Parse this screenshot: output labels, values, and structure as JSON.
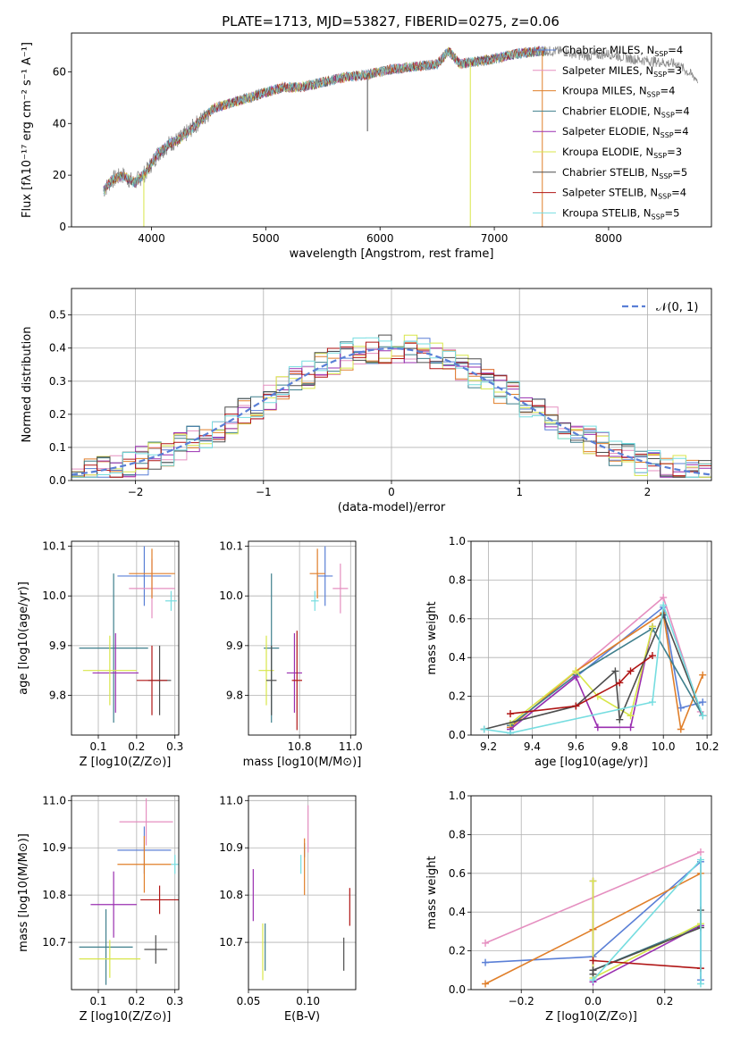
{
  "figure": {
    "title": "PLATE=1713, MJD=53827, FIBERID=0275, z=0.06"
  },
  "models": [
    {
      "name": "Chabrier MILES",
      "nssp": "4",
      "color": "#5a7fd6"
    },
    {
      "name": "Salpeter MILES",
      "nssp": "3",
      "color": "#e58fc0"
    },
    {
      "name": "Kroupa MILES",
      "nssp": "4",
      "color": "#e07f2a"
    },
    {
      "name": "Chabrier ELODIE",
      "nssp": "4",
      "color": "#3f7f8c"
    },
    {
      "name": "Salpeter ELODIE",
      "nssp": "4",
      "color": "#9a2fb0"
    },
    {
      "name": "Kroupa ELODIE",
      "nssp": "3",
      "color": "#d8e64a"
    },
    {
      "name": "Chabrier STELIB",
      "nssp": "5",
      "color": "#4d4d4d"
    },
    {
      "name": "Salpeter STELIB",
      "nssp": "4",
      "color": "#b01515"
    },
    {
      "name": "Kroupa STELIB",
      "nssp": "5",
      "color": "#76dde0"
    }
  ],
  "chart_data": [
    {
      "id": "spectrum",
      "type": "line",
      "title": "PLATE=1713, MJD=53827, FIBERID=0275, z=0.06",
      "xlabel": "wavelength [Angstrom, rest frame]",
      "ylabel": "Flux [f_λ 10^-17 erg cm^-2 s^-1 A^-1]",
      "xlim": [
        3300,
        8900
      ],
      "ylim": [
        0,
        75
      ],
      "xticks": [
        4000,
        5000,
        6000,
        7000,
        8000
      ],
      "yticks": [
        0,
        20,
        40,
        60
      ],
      "legend": "right",
      "data_continuum": {
        "x": [
          3580,
          3650,
          3750,
          3850,
          3950,
          4050,
          4150,
          4250,
          4350,
          4450,
          4550,
          4700,
          4850,
          5000,
          5150,
          5300,
          5500,
          5700,
          5900,
          6100,
          6300,
          6500,
          6600,
          6700,
          6850,
          7000,
          7200,
          7400,
          7600,
          7800,
          8000,
          8200,
          8400,
          8600,
          8780
        ],
        "y": [
          14,
          18,
          20,
          17,
          21,
          28,
          32,
          34,
          38,
          42,
          46,
          48,
          50,
          52,
          54,
          54,
          56,
          58,
          59,
          61,
          62,
          63,
          68,
          63,
          64,
          65,
          67,
          68,
          68,
          66,
          67,
          65,
          64,
          63,
          57
        ]
      },
      "absorption_spikes": [
        {
          "x": 3933,
          "depth_to": 0,
          "series": "Kroupa ELODIE"
        },
        {
          "x": 5890,
          "depth_to": 37,
          "series": "Chabrier STELIB"
        },
        {
          "x": 6790,
          "depth_to": 0,
          "series": "Kroupa ELODIE"
        },
        {
          "x": 7420,
          "depth_to": 0,
          "series": "Kroupa MILES"
        }
      ]
    },
    {
      "id": "residual_histogram",
      "type": "step",
      "xlabel": "(data-model)/error",
      "ylabel": "Normed distribution",
      "xlim": [
        -2.5,
        2.5
      ],
      "ylim": [
        0,
        0.58
      ],
      "xticks": [
        -2,
        -1,
        0,
        1,
        2
      ],
      "xticklabels": [
        "−2",
        "−1",
        "0",
        "1",
        "2"
      ],
      "yticks": [
        0.0,
        0.1,
        0.2,
        0.3,
        0.4,
        0.5
      ],
      "yticklabels": [
        "0.0",
        "0.1",
        "0.2",
        "0.3",
        "0.4",
        "0.5"
      ],
      "grid": true,
      "legend": "top-right",
      "reference": {
        "label": "𝒩(0, 1)",
        "mean": 0,
        "sigma": 1,
        "color": "#5a7fd6"
      },
      "bin_width": 0.1,
      "bin_start": -2.5
    },
    {
      "id": "age_vs_Z",
      "type": "errorbar",
      "xlabel": "Z [log10(Z/Z⊙)]",
      "ylabel": "age [log10(age/yr)]",
      "xlim": [
        0.03,
        0.31
      ],
      "ylim": [
        9.72,
        10.11
      ],
      "xticks": [
        0.1,
        0.2,
        0.3
      ],
      "xticklabels": [
        "0.1",
        "0.2",
        "0.3"
      ],
      "yticks": [
        9.8,
        9.9,
        10.0,
        10.1
      ],
      "yticklabels": [
        "9.8",
        "9.9",
        "10.0",
        "10.1"
      ],
      "grid": true,
      "points": [
        {
          "series": "Chabrier MILES",
          "x": 0.22,
          "xerr": 0.07,
          "y": 10.04,
          "yerr": 0.06
        },
        {
          "series": "Salpeter MILES",
          "x": 0.24,
          "xerr": 0.06,
          "y": 10.015,
          "yerr": 0.06
        },
        {
          "series": "Kroupa MILES",
          "x": 0.24,
          "xerr": 0.06,
          "y": 10.045,
          "yerr": 0.05
        },
        {
          "series": "Chabrier ELODIE",
          "x": 0.14,
          "xerr": 0.09,
          "y": 9.895,
          "yerr": 0.15
        },
        {
          "series": "Salpeter ELODIE",
          "x": 0.145,
          "xerr": 0.06,
          "y": 9.845,
          "yerr": 0.08
        },
        {
          "series": "Kroupa ELODIE",
          "x": 0.13,
          "xerr": 0.07,
          "y": 9.85,
          "yerr": 0.07
        },
        {
          "series": "Chabrier STELIB",
          "x": 0.26,
          "xerr": 0.03,
          "y": 9.83,
          "yerr": 0.07
        },
        {
          "series": "Salpeter STELIB",
          "x": 0.24,
          "xerr": 0.04,
          "y": 9.83,
          "yerr": 0.07
        },
        {
          "series": "Kroupa STELIB",
          "x": 0.29,
          "xerr": 0.015,
          "y": 9.99,
          "yerr": 0.02
        }
      ]
    },
    {
      "id": "age_vs_mass",
      "type": "errorbar",
      "xlabel": "mass [log10(M/M⊙)]",
      "ylabel": "",
      "xlim": [
        10.6,
        11.02
      ],
      "ylim": [
        9.72,
        10.11
      ],
      "xticks": [
        10.8,
        11.0
      ],
      "xticklabels": [
        "10.8",
        "11.0"
      ],
      "yticks": [
        9.8,
        9.9,
        10.0,
        10.1
      ],
      "yticklabels": [
        "9.8",
        "9.9",
        "10.0",
        "10.1"
      ],
      "grid": true,
      "points": [
        {
          "series": "Chabrier MILES",
          "x": 10.9,
          "xerr": 0.03,
          "y": 10.04,
          "yerr": 0.06
        },
        {
          "series": "Salpeter MILES",
          "x": 10.96,
          "xerr": 0.03,
          "y": 10.015,
          "yerr": 0.05
        },
        {
          "series": "Kroupa MILES",
          "x": 10.87,
          "xerr": 0.03,
          "y": 10.045,
          "yerr": 0.05
        },
        {
          "series": "Chabrier ELODIE",
          "x": 10.69,
          "xerr": 0.03,
          "y": 9.895,
          "yerr": 0.15
        },
        {
          "series": "Salpeter ELODIE",
          "x": 10.78,
          "xerr": 0.03,
          "y": 9.845,
          "yerr": 0.08
        },
        {
          "series": "Kroupa ELODIE",
          "x": 10.67,
          "xerr": 0.03,
          "y": 9.85,
          "yerr": 0.07
        },
        {
          "series": "Chabrier STELIB",
          "x": 10.69,
          "xerr": 0.02,
          "y": 9.83,
          "yerr": 0.07
        },
        {
          "series": "Salpeter STELIB",
          "x": 10.79,
          "xerr": 0.02,
          "y": 9.83,
          "yerr": 0.1
        },
        {
          "series": "Kroupa STELIB",
          "x": 10.86,
          "xerr": 0.015,
          "y": 9.99,
          "yerr": 0.02
        }
      ]
    },
    {
      "id": "weight_vs_age",
      "type": "line",
      "xlabel": "age [log10(age/yr)]",
      "ylabel": "mass weight",
      "xlim": [
        9.12,
        10.22
      ],
      "ylim": [
        0,
        1
      ],
      "xticks": [
        9.2,
        9.4,
        9.6,
        9.8,
        10.0,
        10.2
      ],
      "xticklabels": [
        "9.2",
        "9.4",
        "9.6",
        "9.8",
        "10.0",
        "10.2"
      ],
      "yticks": [
        0,
        0.2,
        0.4,
        0.6,
        0.8,
        1.0
      ],
      "yticklabels": [
        "0.0",
        "0.2",
        "0.4",
        "0.6",
        "0.8",
        "1.0"
      ],
      "grid": true,
      "series": [
        {
          "name": "Chabrier MILES",
          "x": [
            9.3,
            10.0,
            10.08,
            10.18
          ],
          "y": [
            0.03,
            0.66,
            0.14,
            0.17
          ]
        },
        {
          "name": "Salpeter MILES",
          "x": [
            9.3,
            10.0,
            10.17
          ],
          "y": [
            0.04,
            0.71,
            0.12
          ]
        },
        {
          "name": "Kroupa MILES",
          "x": [
            9.3,
            9.6,
            10.0,
            10.08,
            10.18
          ],
          "y": [
            0.04,
            0.33,
            0.63,
            0.03,
            0.31
          ]
        },
        {
          "name": "Chabrier ELODIE",
          "x": [
            9.3,
            9.6,
            9.95,
            10.18
          ],
          "y": [
            0.05,
            0.31,
            0.55,
            0.1
          ]
        },
        {
          "name": "Salpeter ELODIE",
          "x": [
            9.3,
            9.6,
            9.7,
            9.85,
            9.95
          ],
          "y": [
            0.03,
            0.3,
            0.04,
            0.04,
            0.56
          ]
        },
        {
          "name": "Kroupa ELODIE",
          "x": [
            9.3,
            9.6,
            9.7,
            9.85,
            9.95
          ],
          "y": [
            0.06,
            0.33,
            0.2,
            0.1,
            0.56
          ]
        },
        {
          "name": "Chabrier STELIB",
          "x": [
            9.18,
            9.6,
            9.78,
            9.8,
            10.0,
            10.18
          ],
          "y": [
            0.03,
            0.15,
            0.33,
            0.08,
            0.62,
            0.1
          ]
        },
        {
          "name": "Salpeter STELIB",
          "x": [
            9.3,
            9.6,
            9.8,
            9.85,
            9.95
          ],
          "y": [
            0.11,
            0.15,
            0.27,
            0.33,
            0.41
          ]
        },
        {
          "name": "Kroupa STELIB",
          "x": [
            9.18,
            9.3,
            9.95,
            10.0,
            10.18
          ],
          "y": [
            0.03,
            0.01,
            0.17,
            0.67,
            0.1
          ]
        }
      ]
    },
    {
      "id": "mass_vs_Z",
      "type": "errorbar",
      "xlabel": "Z [log10(Z/Z⊙)]",
      "ylabel": "mass [log10(M/M⊙)]",
      "xlim": [
        0.03,
        0.31
      ],
      "ylim": [
        10.6,
        11.01
      ],
      "xticks": [
        0.1,
        0.2,
        0.3
      ],
      "xticklabels": [
        "0.1",
        "0.2",
        "0.3"
      ],
      "yticks": [
        10.7,
        10.8,
        10.9,
        11.0
      ],
      "yticklabels": [
        "10.7",
        "10.8",
        "10.9",
        "11.0"
      ],
      "grid": true,
      "points": [
        {
          "series": "Chabrier MILES",
          "x": 0.22,
          "xerr": 0.07,
          "y": 10.895,
          "yerr": 0.05
        },
        {
          "series": "Salpeter MILES",
          "x": 0.225,
          "xerr": 0.07,
          "y": 10.955,
          "yerr": 0.05
        },
        {
          "series": "Kroupa MILES",
          "x": 0.22,
          "xerr": 0.07,
          "y": 10.865,
          "yerr": 0.06
        },
        {
          "series": "Chabrier ELODIE",
          "x": 0.12,
          "xerr": 0.07,
          "y": 10.69,
          "yerr": 0.08
        },
        {
          "series": "Salpeter ELODIE",
          "x": 0.14,
          "xerr": 0.06,
          "y": 10.78,
          "yerr": 0.07
        },
        {
          "series": "Kroupa ELODIE",
          "x": 0.13,
          "xerr": 0.08,
          "y": 10.665,
          "yerr": 0.04
        },
        {
          "series": "Chabrier STELIB",
          "x": 0.25,
          "xerr": 0.03,
          "y": 10.685,
          "yerr": 0.03
        },
        {
          "series": "Salpeter STELIB",
          "x": 0.26,
          "xerr": 0.05,
          "y": 10.79,
          "yerr": 0.03
        },
        {
          "series": "Kroupa STELIB",
          "x": 0.3,
          "xerr": 0.01,
          "y": 10.865,
          "yerr": 0.02
        }
      ]
    },
    {
      "id": "mass_vs_EBV",
      "type": "errorbar",
      "xlabel": "E(B-V)",
      "ylabel": "",
      "xlim": [
        0.05,
        0.14
      ],
      "ylim": [
        10.6,
        11.01
      ],
      "xticks": [
        0.05,
        0.1
      ],
      "xticklabels": [
        "0.05",
        "0.10"
      ],
      "yticks": [
        10.7,
        10.8,
        10.9,
        11.0
      ],
      "yticklabels": [
        "10.7",
        "10.8",
        "10.9",
        "11.0"
      ],
      "grid": true,
      "points": [
        {
          "series": "Chabrier MILES",
          "x": 0.097,
          "xerr": 0.0,
          "y": 10.895,
          "yerr": 0.015
        },
        {
          "series": "Salpeter MILES",
          "x": 0.1,
          "xerr": 0.0,
          "y": 10.94,
          "yerr": 0.05
        },
        {
          "series": "Kroupa MILES",
          "x": 0.097,
          "xerr": 0.0,
          "y": 10.86,
          "yerr": 0.06
        },
        {
          "series": "Chabrier ELODIE",
          "x": 0.064,
          "xerr": 0.0,
          "y": 10.69,
          "yerr": 0.05
        },
        {
          "series": "Salpeter ELODIE",
          "x": 0.054,
          "xerr": 0.0,
          "y": 10.8,
          "yerr": 0.055
        },
        {
          "series": "Kroupa ELODIE",
          "x": 0.062,
          "xerr": 0.0,
          "y": 10.68,
          "yerr": 0.06
        },
        {
          "series": "Chabrier STELIB",
          "x": 0.13,
          "xerr": 0.0,
          "y": 10.675,
          "yerr": 0.035
        },
        {
          "series": "Salpeter STELIB",
          "x": 0.135,
          "xerr": 0.0,
          "y": 10.775,
          "yerr": 0.04
        },
        {
          "series": "Kroupa STELIB",
          "x": 0.094,
          "xerr": 0.0,
          "y": 10.865,
          "yerr": 0.02
        }
      ]
    },
    {
      "id": "weight_vs_Z",
      "type": "line",
      "xlabel": "Z [log10(Z/Z⊙)]",
      "ylabel": "mass weight",
      "xlim": [
        -0.34,
        0.33
      ],
      "ylim": [
        0,
        1
      ],
      "xticks": [
        -0.2,
        0.0,
        0.2
      ],
      "xticklabels": [
        "−0.2",
        "0.0",
        "0.2"
      ],
      "yticks": [
        0,
        0.2,
        0.4,
        0.6,
        0.8,
        1.0
      ],
      "yticklabels": [
        "0.0",
        "0.2",
        "0.4",
        "0.6",
        "0.8",
        "1.0"
      ],
      "grid": true,
      "series": [
        {
          "name": "Chabrier MILES",
          "x": [
            -0.3,
            0.0,
            0.3,
            0.3
          ],
          "y": [
            0.14,
            0.17,
            0.66,
            0.05
          ]
        },
        {
          "name": "Salpeter MILES",
          "x": [
            -0.3,
            0.3
          ],
          "y": [
            0.24,
            0.71
          ]
        },
        {
          "name": "Kroupa MILES",
          "x": [
            -0.3,
            0.0,
            0.3
          ],
          "y": [
            0.03,
            0.31,
            0.6
          ]
        },
        {
          "name": "Chabrier ELODIE",
          "x": [
            0.0,
            0.3
          ],
          "y": [
            0.1,
            0.33
          ]
        },
        {
          "name": "Salpeter ELODIE",
          "x": [
            0.0,
            0.0,
            0.3
          ],
          "y": [
            0.56,
            0.04,
            0.33
          ]
        },
        {
          "name": "Kroupa ELODIE",
          "x": [
            0.0,
            0.0,
            0.3
          ],
          "y": [
            0.56,
            0.06,
            0.34
          ]
        },
        {
          "name": "Chabrier STELIB",
          "x": [
            0.0,
            0.0,
            0.3,
            0.3
          ],
          "y": [
            0.08,
            0.1,
            0.32,
            0.41
          ]
        },
        {
          "name": "Salpeter STELIB",
          "x": [
            0.0,
            0.3
          ],
          "y": [
            0.15,
            0.11
          ]
        },
        {
          "name": "Kroupa STELIB",
          "x": [
            0.0,
            0.3,
            0.3
          ],
          "y": [
            0.05,
            0.67,
            0.03
          ]
        }
      ]
    }
  ]
}
